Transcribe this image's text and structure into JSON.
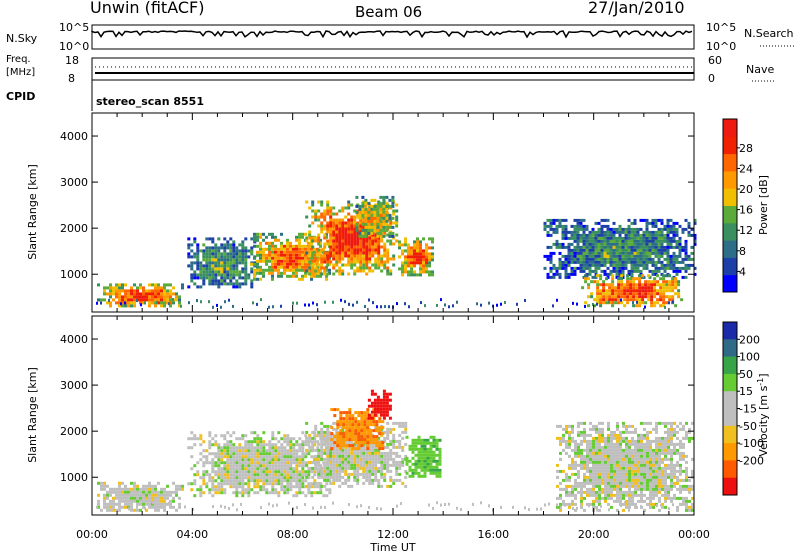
{
  "header": {
    "station": "Unwin (fitACF)",
    "beam": "Beam 06",
    "date": "27/Jan/2010"
  },
  "noise_panel": {
    "left_label": "N.Sky",
    "left_ticks": [
      "10^5",
      "10^0"
    ],
    "right_label": "N.Search",
    "right_ticks": [
      "10^5",
      "10^0"
    ]
  },
  "freq_panel": {
    "left_label_line1": "Freq.",
    "left_label_line2": "[MHz]",
    "left_ticks": [
      "18",
      "8"
    ],
    "right_label": "Nave",
    "right_ticks": [
      "60",
      "0"
    ]
  },
  "cpid_panel": {
    "label": "CPID",
    "text": "stereo_scan 8551"
  },
  "x_axis": {
    "label": "Time UT",
    "tick_labels": [
      "00:00",
      "04:00",
      "08:00",
      "12:00",
      "16:00",
      "20:00",
      "00:00"
    ]
  },
  "chart_data": [
    {
      "type": "heatmap",
      "name": "power",
      "xlabel": "Time UT",
      "ylabel": "Slant Range [km]",
      "xlim": [
        0,
        24
      ],
      "ylim": [
        180,
        4500
      ],
      "y_ticks": [
        "1000",
        "2000",
        "3000",
        "4000"
      ],
      "colorbar": {
        "label": "Power [dB]",
        "tick_labels": [
          "4",
          "8",
          "12",
          "16",
          "20",
          "24",
          "28"
        ],
        "colors": [
          "#0000ff",
          "#1d3fa8",
          "#2c6e87",
          "#3a8f5e",
          "#5bab3b",
          "#f0c000",
          "#ff9900",
          "#ff6600",
          "#f02000",
          "#ee1a10"
        ]
      },
      "regions": [
        {
          "t0": 0.2,
          "t1": 3.6,
          "r0": 300,
          "r1": 800,
          "level": 0.75
        },
        {
          "t0": 3.8,
          "t1": 6.5,
          "r0": 700,
          "r1": 1800,
          "level": 0.35
        },
        {
          "t0": 6.3,
          "t1": 9.5,
          "r0": 900,
          "r1": 1900,
          "level": 0.7
        },
        {
          "t0": 8.5,
          "t1": 12.2,
          "r0": 1000,
          "r1": 2600,
          "level": 0.8
        },
        {
          "t0": 10.5,
          "t1": 12.0,
          "r0": 1800,
          "r1": 2700,
          "level": 0.55
        },
        {
          "t0": 12.2,
          "t1": 13.6,
          "r0": 1000,
          "r1": 1800,
          "level": 0.75
        },
        {
          "t0": 18.0,
          "t1": 24.0,
          "r0": 900,
          "r1": 2200,
          "level": 0.3
        },
        {
          "t0": 19.5,
          "t1": 23.5,
          "r0": 300,
          "r1": 1000,
          "level": 0.8
        }
      ]
    },
    {
      "type": "heatmap",
      "name": "velocity",
      "xlabel": "Time UT",
      "ylabel": "Slant Range [km]",
      "xlim": [
        0,
        24
      ],
      "ylim": [
        180,
        4500
      ],
      "y_ticks": [
        "1000",
        "2000",
        "3000",
        "4000"
      ],
      "colorbar": {
        "label": "Velocity [m s^-1]",
        "tick_labels": [
          "200",
          "100",
          "50",
          "15",
          "-15",
          "-50",
          "-100",
          "-200"
        ],
        "colors": [
          "#1a2aa8",
          "#2f6b86",
          "#37a447",
          "#66cc33",
          "#bfbfbf",
          "#bfbfbf",
          "#f0c020",
          "#ff9900",
          "#ff5a00",
          "#ee1010"
        ]
      },
      "regions": [
        {
          "t0": 0.2,
          "t1": 3.6,
          "r0": 300,
          "r1": 900,
          "vel": 0
        },
        {
          "t0": 3.8,
          "t1": 9.5,
          "r0": 600,
          "r1": 2000,
          "vel": 0
        },
        {
          "t0": 8.5,
          "t1": 12.5,
          "r0": 800,
          "r1": 2200,
          "vel": 0
        },
        {
          "t0": 9.5,
          "t1": 11.6,
          "r0": 1600,
          "r1": 2500,
          "vel": -80
        },
        {
          "t0": 11.0,
          "t1": 11.9,
          "r0": 2300,
          "r1": 2900,
          "vel": -200
        },
        {
          "t0": 12.5,
          "t1": 13.9,
          "r0": 1000,
          "r1": 1900,
          "vel": 40
        },
        {
          "t0": 18.5,
          "t1": 24.0,
          "r0": 300,
          "r1": 2200,
          "vel": 0
        }
      ]
    }
  ]
}
